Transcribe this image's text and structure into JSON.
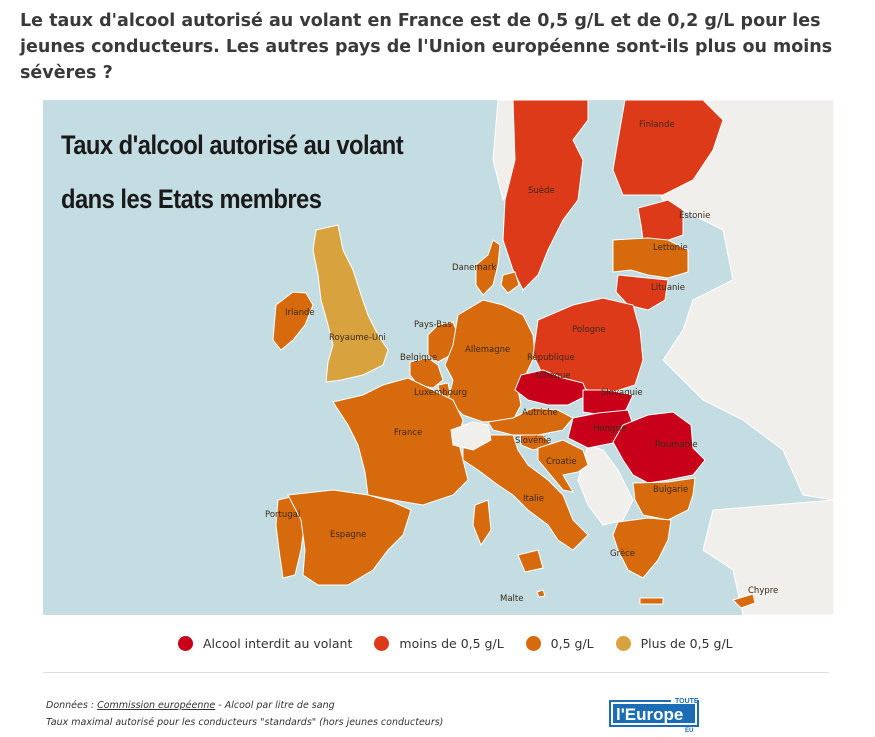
{
  "question": "Le taux d'alcool autorisé au volant en France est de 0,5 g/L et de 0,2 g/L pour les jeunes conducteurs. Les autres pays de l'Union européenne sont-ils plus ou moins sévères ?",
  "map": {
    "title": "Taux d'alcool autorisé au volant dans les Etats membres",
    "colors": {
      "sea": "#c4dde2",
      "land_outside": "#f1efec",
      "border": "#ffffff",
      "interdit": "#c8001a",
      "moins": "#dd3a1a",
      "egal": "#d66a0c",
      "plus": "#d8a33e"
    },
    "countries": [
      {
        "id": "suede",
        "label": "Suède",
        "category": "moins"
      },
      {
        "id": "finlande",
        "label": "Finlande",
        "category": "moins"
      },
      {
        "id": "estonie",
        "label": "Estonie",
        "category": "moins"
      },
      {
        "id": "lettonie",
        "label": "Lettonie",
        "category": "egal"
      },
      {
        "id": "lituanie",
        "label": "Lituanie",
        "category": "moins"
      },
      {
        "id": "danemark",
        "label": "Danemark",
        "category": "egal"
      },
      {
        "id": "irlande",
        "label": "Irlande",
        "category": "egal"
      },
      {
        "id": "royaume_uni",
        "label": "Royaume-Uni",
        "category": "plus"
      },
      {
        "id": "pays_bas",
        "label": "Pays-Bas",
        "category": "egal"
      },
      {
        "id": "belgique",
        "label": "Belgique",
        "category": "egal"
      },
      {
        "id": "luxembourg",
        "label": "Luxembourg",
        "category": "egal"
      },
      {
        "id": "allemagne",
        "label": "Allemagne",
        "category": "egal"
      },
      {
        "id": "pologne",
        "label": "Pologne",
        "category": "moins"
      },
      {
        "id": "republique_tcheque",
        "label": "République tchèque",
        "category": "interdit"
      },
      {
        "id": "slovaquie",
        "label": "Slovaquie",
        "category": "interdit"
      },
      {
        "id": "autriche",
        "label": "Autriche",
        "category": "egal"
      },
      {
        "id": "hongrie",
        "label": "Hongrie",
        "category": "interdit"
      },
      {
        "id": "slovenie",
        "label": "Slovénie",
        "category": "egal"
      },
      {
        "id": "croatie",
        "label": "Croatie",
        "category": "egal"
      },
      {
        "id": "roumanie",
        "label": "Roumanie",
        "category": "interdit"
      },
      {
        "id": "bulgarie",
        "label": "Bulgarie",
        "category": "egal"
      },
      {
        "id": "france",
        "label": "France",
        "category": "egal"
      },
      {
        "id": "italie",
        "label": "Italie",
        "category": "egal"
      },
      {
        "id": "portugal",
        "label": "Portugal",
        "category": "egal"
      },
      {
        "id": "espagne",
        "label": "Espagne",
        "category": "egal"
      },
      {
        "id": "grece",
        "label": "Grèce",
        "category": "egal"
      },
      {
        "id": "malte",
        "label": "Malte",
        "category": "egal"
      },
      {
        "id": "chypre",
        "label": "Chypre",
        "category": "egal"
      }
    ]
  },
  "legend": [
    {
      "label": "Alcool interdit au volant",
      "color": "#c8001a"
    },
    {
      "label": "moins de 0,5 g/L",
      "color": "#dd3a1a"
    },
    {
      "label": "0,5 g/L",
      "color": "#d66a0c"
    },
    {
      "label": "Plus de 0,5 g/L",
      "color": "#d8a33e"
    }
  ],
  "source": {
    "prefix": "Données : ",
    "link": "Commission européenne",
    "suffix": " - Alcool par litre de sang",
    "line2": "Taux maximal autorisé pour les conducteurs \"standards\" (hors jeunes conducteurs)"
  },
  "logo": {
    "main": "l'Europe",
    "top": "TOUTE",
    "bottom": "EU",
    "color": "#1b6eb5"
  }
}
